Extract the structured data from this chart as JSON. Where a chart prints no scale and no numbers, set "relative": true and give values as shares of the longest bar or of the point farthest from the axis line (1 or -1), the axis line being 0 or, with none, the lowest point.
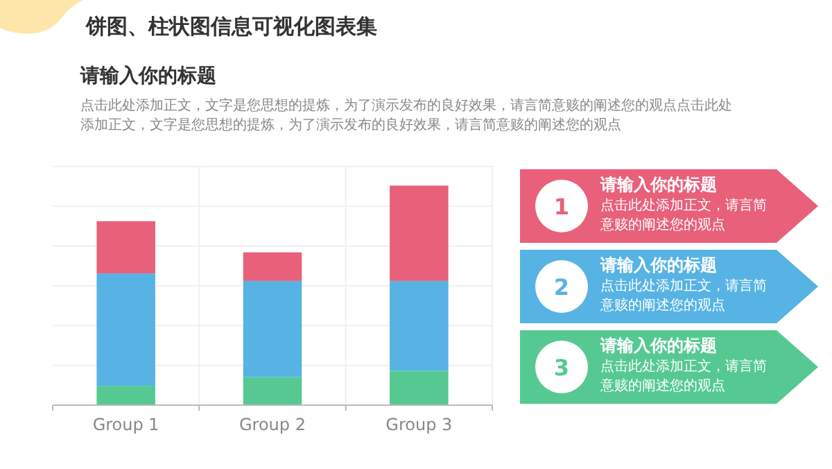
{
  "chart_data": [
    {
      "type": "bar",
      "title": "饼图、柱状图信息可视化图表集",
      "subtitle": "请输入你的标题",
      "annotations": [
        "点击此处添加正文，文字是您思想的提炼，为了演示发布的良好效果，请言简意赅的阐述您的观点点击此处添加正文，文字是您思想的提炼，为了演示发布的良好效果，请言简意赅的阐述您的观点"
      ],
      "categories": [
        "Group 1",
        "Group 2",
        "Group 3"
      ],
      "stacked": true,
      "relative": true,
      "grid": true,
      "series": [
        {
          "color": "#56c993",
          "values": [
            0.088,
            0.128,
            0.157
          ]
        },
        {
          "color": "#57b3e3",
          "values": [
            0.512,
            0.438,
            0.409
          ]
        },
        {
          "color": "#e8607a",
          "values": [
            0.238,
            0.13,
            0.434
          ]
        }
      ]
    },
    {
      "type": "other",
      "colors": [
        "#e8607a",
        "#57b3e3",
        "#56c993"
      ],
      "annotations": [
        "1",
        "请输入你的标题",
        "点击此处添加正文，请言简意赅的阐述您的观点",
        "2",
        "请输入你的标题",
        "点击此处添加正文，请言简意赅的阐述您的观点",
        "3",
        "请输入你的标题",
        "点击此处添加正文，请言简意赅的阐述您的观点"
      ]
    }
  ]
}
